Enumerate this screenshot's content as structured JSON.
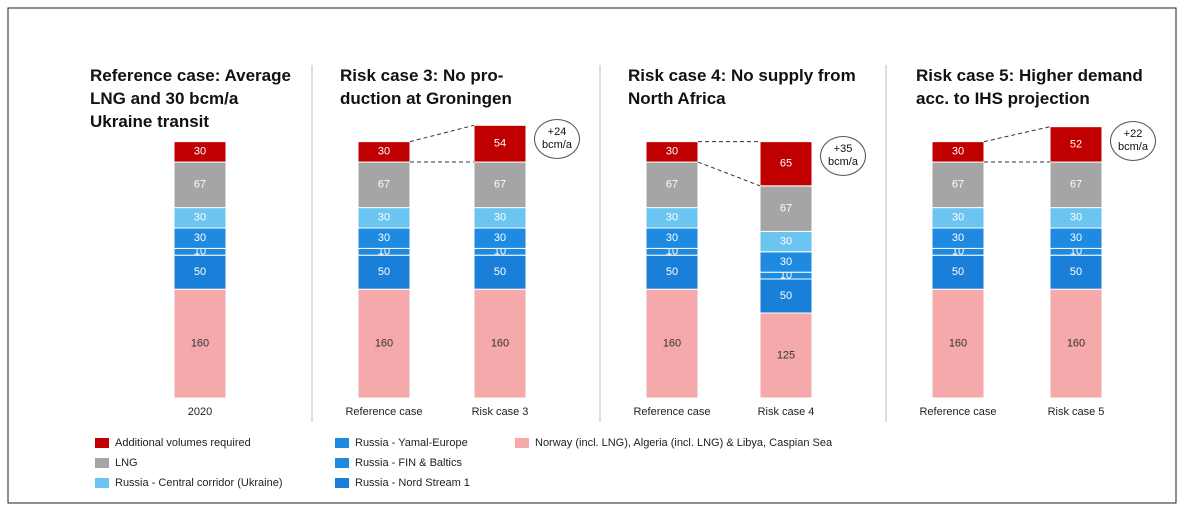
{
  "chart_data": [
    {
      "type": "bar",
      "stacked": true,
      "title": "Reference case: Average LNG and 30 bcm/a Ukraine transit",
      "categories": [
        "2020"
      ],
      "series": [
        {
          "name": "Additional volumes required",
          "color": "#c00000",
          "values": [
            30
          ]
        },
        {
          "name": "LNG",
          "color": "#a5a5a5",
          "values": [
            67
          ]
        },
        {
          "name": "Russia - Central corridor (Ukraine)",
          "color": "#6cc4f0",
          "values": [
            30
          ]
        },
        {
          "name": "Russia - Yamal-Europe",
          "color": "#1e8ae0",
          "values": [
            30
          ]
        },
        {
          "name": "Russia - FIN & Baltics",
          "color": "#1e8ae0",
          "values": [
            10
          ]
        },
        {
          "name": "Russia - Nord Stream 1",
          "color": "#1a7fd8",
          "values": [
            50
          ]
        },
        {
          "name": "Norway (incl. LNG), Algeria (incl. LNG) & Libya, Caspian Sea",
          "color": "#f5a9ab",
          "values": [
            160
          ]
        }
      ]
    },
    {
      "type": "bar",
      "stacked": true,
      "title": "Risk case 3: No pro-duction at Groningen",
      "categories": [
        "Reference case",
        "Risk case 3"
      ],
      "annotation": "+24 bcm/a",
      "series": [
        {
          "name": "Additional volumes required",
          "color": "#c00000",
          "values": [
            30,
            54
          ]
        },
        {
          "name": "LNG",
          "color": "#a5a5a5",
          "values": [
            67,
            67
          ]
        },
        {
          "name": "Russia - Central corridor (Ukraine)",
          "color": "#6cc4f0",
          "values": [
            30,
            30
          ]
        },
        {
          "name": "Russia - Yamal-Europe",
          "color": "#1e8ae0",
          "values": [
            30,
            30
          ]
        },
        {
          "name": "Russia - FIN & Baltics",
          "color": "#1e8ae0",
          "values": [
            10,
            10
          ]
        },
        {
          "name": "Russia - Nord Stream 1",
          "color": "#1a7fd8",
          "values": [
            50,
            50
          ]
        },
        {
          "name": "Norway (incl. LNG), Algeria (incl. LNG) & Libya, Caspian Sea",
          "color": "#f5a9ab",
          "values": [
            160,
            160
          ]
        }
      ]
    },
    {
      "type": "bar",
      "stacked": true,
      "title": "Risk case 4: No supply from North Africa",
      "categories": [
        "Reference case",
        "Risk case 4"
      ],
      "annotation": "+35 bcm/a",
      "series": [
        {
          "name": "Additional volumes required",
          "color": "#c00000",
          "values": [
            30,
            65
          ]
        },
        {
          "name": "LNG",
          "color": "#a5a5a5",
          "values": [
            67,
            67
          ]
        },
        {
          "name": "Russia - Central corridor (Ukraine)",
          "color": "#6cc4f0",
          "values": [
            30,
            30
          ]
        },
        {
          "name": "Russia - Yamal-Europe",
          "color": "#1e8ae0",
          "values": [
            30,
            30
          ]
        },
        {
          "name": "Russia - FIN & Baltics",
          "color": "#1e8ae0",
          "values": [
            10,
            10
          ]
        },
        {
          "name": "Russia - Nord Stream 1",
          "color": "#1a7fd8",
          "values": [
            50,
            50
          ]
        },
        {
          "name": "Norway (incl. LNG), Algeria (incl. LNG) & Libya, Caspian Sea",
          "color": "#f5a9ab",
          "values": [
            160,
            125
          ]
        }
      ]
    },
    {
      "type": "bar",
      "stacked": true,
      "title": "Risk case 5: Higher demand acc. to IHS projection",
      "categories": [
        "Reference case",
        "Risk case 5"
      ],
      "annotation": "+22 bcm/a",
      "series": [
        {
          "name": "Additional volumes required",
          "color": "#c00000",
          "values": [
            30,
            52
          ]
        },
        {
          "name": "LNG",
          "color": "#a5a5a5",
          "values": [
            67,
            67
          ]
        },
        {
          "name": "Russia - Central corridor (Ukraine)",
          "color": "#6cc4f0",
          "values": [
            30,
            30
          ]
        },
        {
          "name": "Russia - Yamal-Europe",
          "color": "#1e8ae0",
          "values": [
            30,
            30
          ]
        },
        {
          "name": "Russia - FIN & Baltics",
          "color": "#1e8ae0",
          "values": [
            10,
            10
          ]
        },
        {
          "name": "Russia - Nord Stream 1",
          "color": "#1a7fd8",
          "values": [
            50,
            50
          ]
        },
        {
          "name": "Norway (incl. LNG), Algeria (incl. LNG) & Libya, Caspian Sea",
          "color": "#f5a9ab",
          "values": [
            160,
            160
          ]
        }
      ]
    }
  ]
}
